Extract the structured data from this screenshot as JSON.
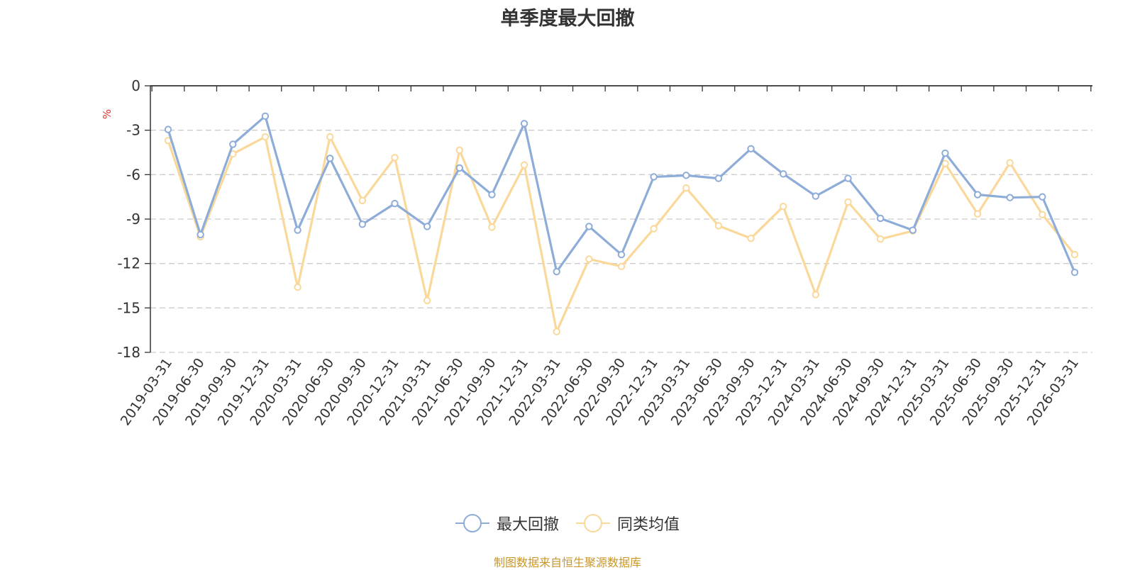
{
  "chart_data": {
    "type": "line",
    "title": "单季度最大回撤",
    "ylabel": "%",
    "ylim": [
      -18,
      0
    ],
    "yticks": [
      0,
      -3,
      -6,
      -9,
      -12,
      -15,
      -18
    ],
    "grid": true,
    "legend_position": "bottom-center",
    "source": "制图数据来自恒生聚源数据库",
    "categories": [
      "2019-03-31",
      "2019-06-30",
      "2019-09-30",
      "2019-12-31",
      "2020-03-31",
      "2020-06-30",
      "2020-09-30",
      "2020-12-31",
      "2021-03-31",
      "2021-06-30",
      "2021-09-30",
      "2021-12-31",
      "2022-03-31",
      "2022-06-30",
      "2022-09-30",
      "2022-12-31",
      "2023-03-31",
      "2023-06-30",
      "2023-09-30",
      "2023-12-31",
      "2024-03-31",
      "2024-06-30",
      "2024-09-30",
      "2024-12-31",
      "2025-03-31",
      "2025-06-30",
      "2025-09-30",
      "2025-12-31",
      "2026-03-31"
    ],
    "series": [
      {
        "name": "最大回撤",
        "color": "#8eacd8",
        "values": [
          -2.95,
          -10.05,
          -3.95,
          -2.05,
          -9.75,
          -4.9,
          -9.35,
          -7.95,
          -9.5,
          -5.55,
          -7.35,
          -2.55,
          -12.55,
          -9.5,
          -11.4,
          -6.15,
          -6.05,
          -6.25,
          -4.25,
          -5.95,
          -7.45,
          -6.25,
          -8.95,
          -9.75,
          -4.55,
          -7.35,
          -7.55,
          -7.5,
          -12.6
        ]
      },
      {
        "name": "同类均值",
        "color": "#f9d89a",
        "values": [
          -3.7,
          -10.2,
          -4.6,
          -3.45,
          -13.6,
          -3.45,
          -7.75,
          -4.85,
          -14.5,
          -4.35,
          -9.55,
          -5.35,
          -16.6,
          -11.7,
          -12.2,
          -9.65,
          -6.9,
          -9.45,
          -10.3,
          -8.15,
          -14.1,
          -7.85,
          -10.35,
          -9.8,
          -5.25,
          -8.65,
          -5.2,
          -8.7,
          -11.4
        ]
      }
    ]
  }
}
